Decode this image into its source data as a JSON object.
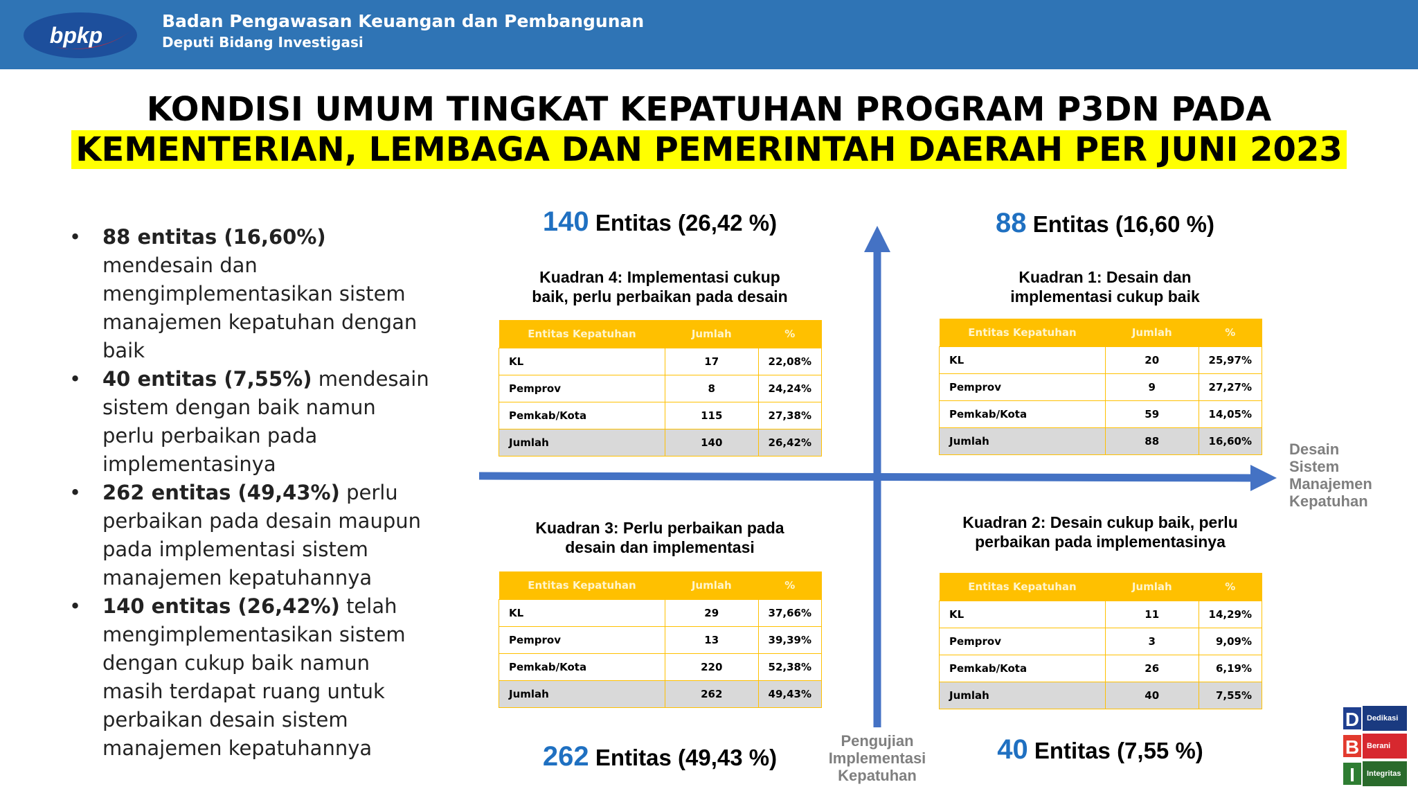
{
  "header": {
    "logo": "bpkp",
    "org": "Badan Pengawasan Keuangan dan Pembangunan",
    "division": "Deputi Bidang Investigasi"
  },
  "title": {
    "line1": "KONDISI UMUM TINGKAT KEPATUHAN PROGRAM P3DN PADA",
    "line2": "KEMENTERIAN, LEMBAGA DAN PEMERINTAH DAERAH PER JUNI 2023"
  },
  "bullets": [
    {
      "bold": "88 entitas (16,60%)",
      "text": "mendesain dan mengimplementasikan sistem manajemen kepatuhan dengan baik"
    },
    {
      "bold": "40 entitas (7,55%)",
      "text": "mendesain sistem dengan baik namun perlu perbaikan pada implementasinya"
    },
    {
      "bold": "262 entitas (49,43%)",
      "text": "perlu perbaikan pada desain maupun pada implementasi sistem manajemen kepatuhannya"
    },
    {
      "bold": "140 entitas (26,42%)",
      "text": "telah mengimplementasikan  sistem dengan cukup baik namun masih terdapat ruang untuk perbaikan desain sistem manajemen kepatuhannya"
    }
  ],
  "axes": {
    "x_label": "Desain Sistem Manajemen Kepatuhan",
    "y_label": "Pengujian Implementasi Kepatuhan"
  },
  "quadrants": [
    {
      "count": "140",
      "label": "Entitas (26,42 %)",
      "title": [
        "Kuadran 4: Implementasi cukup",
        "baik, perlu perbaikan pada desain"
      ],
      "table": {
        "header": [
          "Entitas Kepatuhan",
          "Jumlah",
          "%"
        ],
        "rows": [
          [
            "KL",
            "17",
            "22,08%"
          ],
          [
            "Pemprov",
            "8",
            "24,24%"
          ],
          [
            "Pemkab/Kota",
            "115",
            "27,38%"
          ],
          [
            "Jumlah",
            "140",
            "26,42%"
          ]
        ]
      }
    },
    {
      "count": "88",
      "label": "Entitas (16,60 %)",
      "title": [
        "Kuadran 1: Desain dan",
        "implementasi cukup baik"
      ],
      "table": {
        "header": [
          "Entitas Kepatuhan",
          "Jumlah",
          "%"
        ],
        "rows": [
          [
            "KL",
            "20",
            "25,97%"
          ],
          [
            "Pemprov",
            "9",
            "27,27%"
          ],
          [
            "Pemkab/Kota",
            "59",
            "14,05%"
          ],
          [
            "Jumlah",
            "88",
            "16,60%"
          ]
        ]
      }
    },
    {
      "count": "262",
      "label": "Entitas (49,43 %)",
      "title": [
        "Kuadran 3: Perlu perbaikan pada",
        "desain dan implementasi"
      ],
      "table": {
        "header": [
          "Entitas Kepatuhan",
          "Jumlah",
          "%"
        ],
        "rows": [
          [
            "KL",
            "29",
            "37,66%"
          ],
          [
            "Pemprov",
            "13",
            "39,39%"
          ],
          [
            "Pemkab/Kota",
            "220",
            "52,38%"
          ],
          [
            "Jumlah",
            "262",
            "49,43%"
          ]
        ]
      }
    },
    {
      "count": "40",
      "label": "Entitas (7,55 %)",
      "title": [
        "Kuadran 2: Desain cukup baik, perlu",
        "perbaikan pada implementasinya"
      ],
      "table": {
        "header": [
          "Entitas Kepatuhan",
          "Jumlah",
          "%"
        ],
        "rows": [
          [
            "KL",
            "11",
            "14,29%"
          ],
          [
            "Pemprov",
            "3",
            "9,09%"
          ],
          [
            "Pemkab/Kota",
            "26",
            "6,19%"
          ],
          [
            "Jumlah",
            "40",
            "7,55%"
          ]
        ]
      }
    }
  ],
  "badges": [
    {
      "letter": "D",
      "word": "Dedikasi"
    },
    {
      "letter": "B",
      "word": "Berani"
    },
    {
      "letter": "I",
      "word": "Integritas"
    }
  ]
}
